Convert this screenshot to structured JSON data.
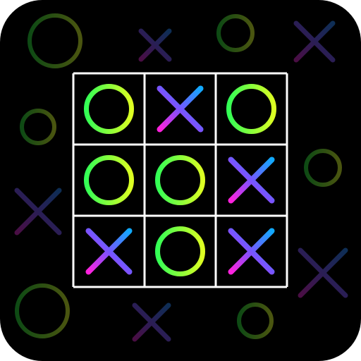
{
  "app": {
    "background": "#000000",
    "grid_line_color": "#ffffff"
  },
  "board": {
    "cells": [
      [
        "O",
        "X",
        "O"
      ],
      [
        "O",
        "O",
        "X"
      ],
      [
        "X",
        "O",
        "X"
      ]
    ]
  },
  "palette": {
    "o_gradient": [
      "#33ff55",
      "#ddff22"
    ],
    "x_gradient": [
      "#ff22dd",
      "#7755ff",
      "#11aaff"
    ],
    "decor_o_gradient": [
      "#0e4a14",
      "#4a5510"
    ],
    "decor_x_gradient": [
      "#4a0e44",
      "#2a1e55",
      "#0e2e55"
    ]
  },
  "decorations": [
    {
      "type": "O",
      "icon": "ring-icon"
    },
    {
      "type": "X",
      "icon": "cross-icon"
    },
    {
      "type": "O",
      "icon": "ring-icon"
    },
    {
      "type": "X",
      "icon": "cross-icon"
    },
    {
      "type": "O",
      "icon": "ring-icon"
    },
    {
      "type": "O",
      "icon": "ring-icon"
    },
    {
      "type": "X",
      "icon": "cross-icon"
    },
    {
      "type": "X",
      "icon": "cross-icon"
    },
    {
      "type": "O",
      "icon": "ring-icon"
    },
    {
      "type": "X",
      "icon": "cross-icon"
    },
    {
      "type": "O",
      "icon": "ring-icon"
    }
  ]
}
